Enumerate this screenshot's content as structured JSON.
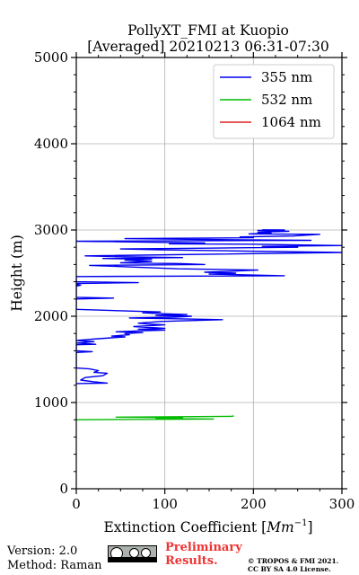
{
  "chart_data": {
    "type": "line",
    "title": "PollyXT_FMI at Kuopio",
    "subtitle": "[Averaged] 20210213 06:31-07:30",
    "xlabel": "Extinction Coefficient [",
    "xlabel_unit_base": "Mm",
    "xlabel_unit_exp": "−1",
    "xlabel_end": "]",
    "ylabel": "Height (m)",
    "xlim": [
      0,
      300
    ],
    "ylim": [
      0,
      5000
    ],
    "xticks": [
      0,
      100,
      200,
      300
    ],
    "yticks": [
      0,
      1000,
      2000,
      3000,
      4000,
      5000
    ],
    "xtick_labels": [
      "0",
      "100",
      "200",
      "300"
    ],
    "ytick_labels": [
      "0",
      "1000",
      "2000",
      "3000",
      "4000",
      "5000"
    ],
    "grid": true,
    "legend_position": "top-right",
    "series": [
      {
        "name": "355 nm",
        "color": "#0000ee",
        "points": [
          [
            0,
            1220
          ],
          [
            35,
            1225
          ],
          [
            20,
            1240
          ],
          [
            5,
            1260
          ],
          [
            10,
            1290
          ],
          [
            30,
            1310
          ],
          [
            35,
            1340
          ],
          [
            20,
            1350
          ],
          [
            25,
            1370
          ],
          [
            15,
            1390
          ],
          [
            0,
            1400
          ],
          [
            0,
            1580
          ],
          [
            18,
            1590
          ],
          [
            0,
            1600
          ],
          [
            0,
            1670
          ],
          [
            22,
            1675
          ],
          [
            0,
            1690
          ],
          [
            20,
            1705
          ],
          [
            0,
            1720
          ],
          [
            25,
            1740
          ],
          [
            55,
            1760
          ],
          [
            40,
            1770
          ],
          [
            60,
            1785
          ],
          [
            55,
            1800
          ],
          [
            75,
            1810
          ],
          [
            45,
            1820
          ],
          [
            70,
            1830
          ],
          [
            100,
            1840
          ],
          [
            70,
            1850
          ],
          [
            100,
            1860
          ],
          [
            65,
            1880
          ],
          [
            100,
            1900
          ],
          [
            80,
            1910
          ],
          [
            70,
            1920
          ],
          [
            95,
            1940
          ],
          [
            165,
            1960
          ],
          [
            120,
            1970
          ],
          [
            60,
            1980
          ],
          [
            110,
            1990
          ],
          [
            130,
            2000
          ],
          [
            90,
            2010
          ],
          [
            125,
            2020
          ],
          [
            95,
            2030
          ],
          [
            75,
            2040
          ],
          [
            95,
            2050
          ],
          [
            60,
            2060
          ],
          [
            0,
            2080
          ],
          [
            0,
            2200
          ],
          [
            42,
            2210
          ],
          [
            0,
            2220
          ],
          [
            0,
            2350
          ],
          [
            5,
            2360
          ],
          [
            0,
            2370
          ],
          [
            0,
            2380
          ],
          [
            70,
            2390
          ],
          [
            0,
            2400
          ],
          [
            0,
            2460
          ],
          [
            235,
            2470
          ],
          [
            150,
            2490
          ],
          [
            180,
            2500
          ],
          [
            145,
            2510
          ],
          [
            170,
            2520
          ],
          [
            205,
            2535
          ],
          [
            115,
            2550
          ],
          [
            15,
            2590
          ],
          [
            145,
            2600
          ],
          [
            120,
            2610
          ],
          [
            50,
            2620
          ],
          [
            85,
            2635
          ],
          [
            55,
            2650
          ],
          [
            85,
            2660
          ],
          [
            30,
            2670
          ],
          [
            120,
            2680
          ],
          [
            55,
            2690
          ],
          [
            10,
            2700
          ],
          [
            300,
            2740
          ],
          [
            95,
            2770
          ],
          [
            50,
            2780
          ],
          [
            150,
            2790
          ],
          [
            250,
            2800
          ],
          [
            210,
            2810
          ],
          [
            300,
            2820
          ],
          [
            200,
            2835
          ],
          [
            105,
            2840
          ],
          [
            145,
            2850
          ],
          [
            0,
            2870
          ],
          [
            265,
            2880
          ],
          [
            150,
            2890
          ],
          [
            55,
            2900
          ],
          [
            200,
            2910
          ],
          [
            185,
            2920
          ],
          [
            245,
            2930
          ],
          [
            275,
            2950
          ],
          [
            195,
            2955
          ],
          [
            220,
            2965
          ],
          [
            205,
            2975
          ],
          [
            240,
            2985
          ],
          [
            205,
            2995
          ],
          [
            235,
            3000
          ],
          [
            210,
            3002
          ]
        ]
      },
      {
        "name": "532 nm",
        "color": "#00bb00",
        "points": [
          [
            0,
            800
          ],
          [
            155,
            808
          ],
          [
            90,
            815
          ],
          [
            120,
            822
          ],
          [
            45,
            830
          ],
          [
            175,
            840
          ],
          [
            178,
            845
          ]
        ]
      },
      {
        "name": "1064 nm",
        "color": "#dd2222",
        "points": []
      }
    ]
  },
  "footer": {
    "version": "Version: 2.0",
    "method": "Method: Raman",
    "preliminary_line1": "Preliminary",
    "preliminary_line2": "Results.",
    "copyright_line1": "© TROPOS & FMI 2021.",
    "copyright_line2": "CC BY SA 4.0 License."
  }
}
